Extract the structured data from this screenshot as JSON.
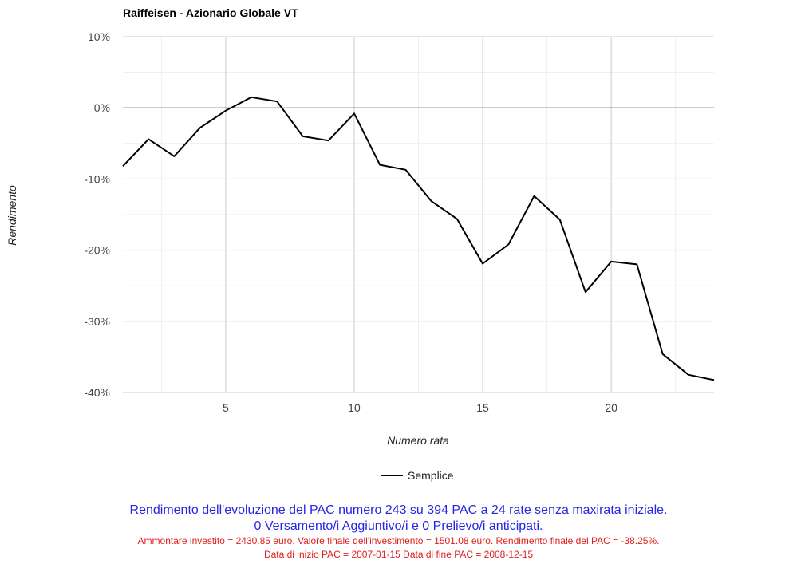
{
  "chart_data": {
    "type": "line",
    "title": "Raiffeisen - Azionario Globale VT",
    "xlabel": "Numero rata",
    "ylabel": "Rendimento",
    "xlim": [
      1,
      24
    ],
    "ylim": [
      -40,
      10
    ],
    "x_ticks": [
      5,
      10,
      15,
      20
    ],
    "y_ticks": [
      10,
      0,
      -10,
      -20,
      -30,
      -40
    ],
    "y_tick_labels": [
      "10%",
      "0%",
      "-10%",
      "-20%",
      "-30%",
      "-40%"
    ],
    "grid": true,
    "legend_position": "bottom",
    "series": [
      {
        "name": "Semplice",
        "color": "#000000",
        "x": [
          1,
          2,
          3,
          4,
          5,
          6,
          7,
          8,
          9,
          10,
          11,
          12,
          13,
          14,
          15,
          16,
          17,
          18,
          19,
          20,
          21,
          22,
          23,
          24
        ],
        "values": [
          -8.2,
          -4.4,
          -6.8,
          -2.8,
          -0.4,
          1.5,
          0.9,
          -4.0,
          -4.6,
          -0.8,
          -8.0,
          -8.7,
          -13.1,
          -15.6,
          -21.9,
          -19.2,
          -12.4,
          -15.7,
          -25.9,
          -21.6,
          -22.0,
          -34.6,
          -37.5,
          -38.25
        ]
      }
    ]
  },
  "caption": {
    "line1": "Rendimento dell'evoluzione del PAC numero 243 su 394 PAC a 24 rate senza maxirata iniziale.",
    "line2": "0 Versamento/i Aggiuntivo/i e 0 Prelievo/i anticipati.",
    "line3": "Ammontare investito = 2430.85 euro. Valore finale dell'investimento = 1501.08 euro. Rendimento finale del PAC = -38.25%.",
    "line4": "Data di inizio PAC = 2007-01-15 Data di fine PAC = 2008-12-15"
  }
}
